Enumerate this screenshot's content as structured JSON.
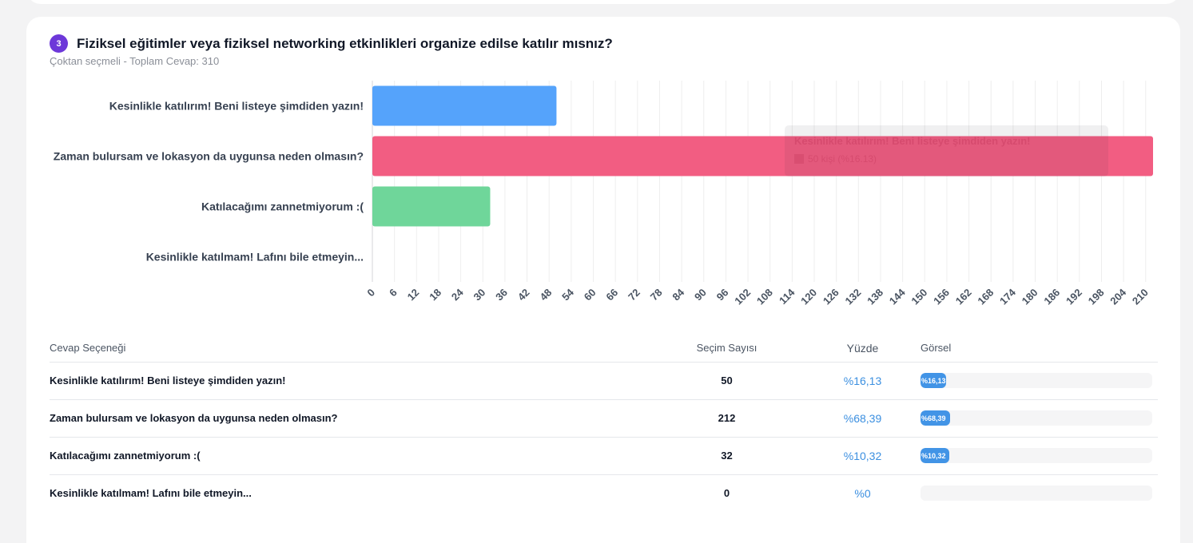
{
  "question": {
    "number": "3",
    "title": "Fiziksel eğitimler veya fiziksel networking etkinlikleri organize edilse katılır mısnız?",
    "subtitle": "Çoktan seçmeli - Toplam Cevap: 310"
  },
  "chart_data": {
    "type": "bar",
    "orientation": "horizontal",
    "categories": [
      "Kesinlikle katılırım! Beni listeye şimdiden yazın!",
      "Zaman bulursam ve lokasyon da uygunsa neden olmasın?",
      "Katılacağımı zannetmiyorum :(",
      "Kesinlikle katılmam! Lafını bile etmeyin..."
    ],
    "values": [
      50,
      212,
      32,
      0
    ],
    "colors": [
      "#55a3fb",
      "#f25d82",
      "#6fd69a",
      "#f5bb42"
    ],
    "xlim": [
      0,
      212
    ],
    "x_ticks": [
      0,
      6,
      12,
      18,
      24,
      30,
      36,
      42,
      48,
      54,
      60,
      66,
      72,
      78,
      84,
      90,
      96,
      102,
      108,
      114,
      120,
      126,
      132,
      138,
      144,
      150,
      156,
      162,
      168,
      174,
      180,
      186,
      192,
      198,
      204,
      210
    ],
    "grid": true,
    "tooltip": {
      "title": "Kesinlikle katılırım! Beni listeye şimdiden yazın!",
      "body": "50 kişi (%16.13)"
    }
  },
  "table": {
    "headers": {
      "option": "Cevap Seçeneği",
      "count": "Seçim Sayısı",
      "percent": "Yüzde",
      "visual": "Görsel"
    },
    "rows": [
      {
        "option": "Kesinlikle katılırım! Beni listeye şimdiden yazın!",
        "count": "50",
        "percent": "%16,13",
        "fraction": 0.1113
      },
      {
        "option": "Zaman bulursam ve lokasyon da uygunsa neden olmasın?",
        "count": "212",
        "percent": "%68,39",
        "fraction": 0.1273
      },
      {
        "option": "Katılacağımı zannetmiyorum :(",
        "count": "32",
        "percent": "%10,32",
        "fraction": 0.1226
      },
      {
        "option": "Kesinlikle katılmam! Lafını bile etmeyin...",
        "count": "0",
        "percent": "%0",
        "fraction": 0
      }
    ]
  }
}
